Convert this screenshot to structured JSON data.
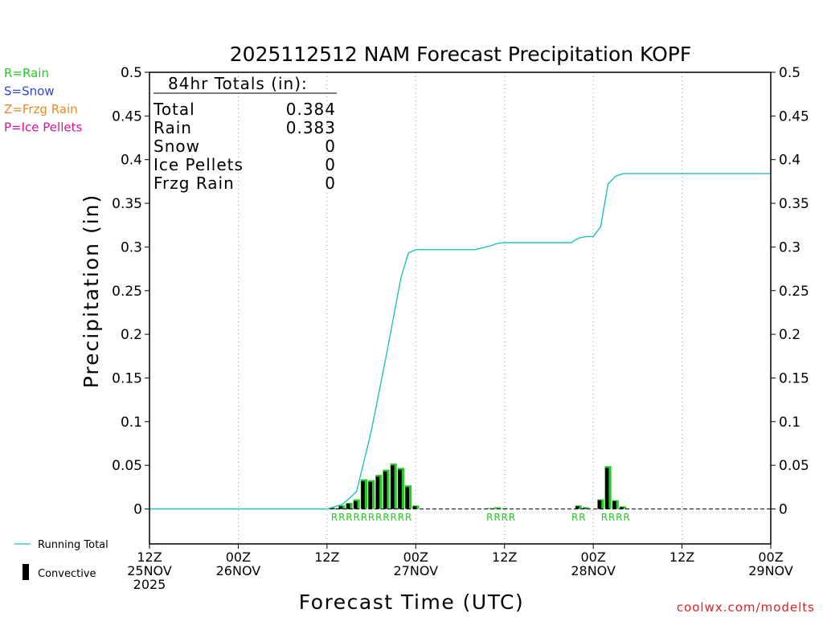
{
  "chart_data": {
    "type": "bar",
    "title": "2025112512 NAM Forecast Precipitation KOPF",
    "ylabel": "Precipitation (in)",
    "xlabel": "Forecast Time (UTC)",
    "xlim": [
      0,
      84
    ],
    "ylim": [
      -0.04,
      0.5
    ],
    "y_ticks": [
      0,
      0.05,
      0.1,
      0.15,
      0.2,
      0.25,
      0.3,
      0.35,
      0.4,
      0.45,
      0.5
    ],
    "y_tick_labels": [
      "0",
      "0.05",
      "0.1",
      "0.15",
      "0.2",
      "0.25",
      "0.3",
      "0.35",
      "0.4",
      "0.45",
      "0.5"
    ],
    "x_ticks": [
      {
        "hour": 0,
        "lines": [
          "12Z",
          "25NOV",
          "2025"
        ]
      },
      {
        "hour": 12,
        "lines": [
          "00Z",
          "26NOV"
        ]
      },
      {
        "hour": 24,
        "lines": [
          "12Z"
        ]
      },
      {
        "hour": 36,
        "lines": [
          "00Z",
          "27NOV"
        ]
      },
      {
        "hour": 48,
        "lines": [
          "12Z"
        ]
      },
      {
        "hour": 60,
        "lines": [
          "00Z",
          "28NOV"
        ]
      },
      {
        "hour": 72,
        "lines": [
          "12Z"
        ]
      },
      {
        "hour": 84,
        "lines": [
          "00Z",
          "29NOV"
        ]
      }
    ],
    "grid_hours": [
      12,
      24,
      36,
      48,
      60,
      72
    ],
    "bars": [
      {
        "hour": 25,
        "value": 0.001,
        "conv": 0.001
      },
      {
        "hour": 26,
        "value": 0.004,
        "conv": 0.003
      },
      {
        "hour": 27,
        "value": 0.007,
        "conv": 0.006
      },
      {
        "hour": 28,
        "value": 0.011,
        "conv": 0.009
      },
      {
        "hour": 29,
        "value": 0.034,
        "conv": 0.032
      },
      {
        "hour": 30,
        "value": 0.033,
        "conv": 0.031
      },
      {
        "hour": 31,
        "value": 0.039,
        "conv": 0.037
      },
      {
        "hour": 32,
        "value": 0.045,
        "conv": 0.043
      },
      {
        "hour": 33,
        "value": 0.052,
        "conv": 0.05
      },
      {
        "hour": 34,
        "value": 0.047,
        "conv": 0.045
      },
      {
        "hour": 35,
        "value": 0.027,
        "conv": 0.025
      },
      {
        "hour": 36,
        "value": 0.004,
        "conv": 0.003
      },
      {
        "hour": 46,
        "value": 0.001,
        "conv": 0.0
      },
      {
        "hour": 47,
        "value": 0.002,
        "conv": 0.0
      },
      {
        "hour": 48,
        "value": 0.001,
        "conv": 0.0
      },
      {
        "hour": 58,
        "value": 0.004,
        "conv": 0.003
      },
      {
        "hour": 59,
        "value": 0.002,
        "conv": 0.001
      },
      {
        "hour": 61,
        "value": 0.011,
        "conv": 0.01
      },
      {
        "hour": 62,
        "value": 0.049,
        "conv": 0.047
      },
      {
        "hour": 63,
        "value": 0.01,
        "conv": 0.009
      },
      {
        "hour": 64,
        "value": 0.003,
        "conv": 0.002
      }
    ],
    "running_total": {
      "name": "Running Total",
      "x": [
        0,
        24,
        26,
        27,
        28,
        30,
        32,
        34,
        35,
        36,
        37,
        44,
        46,
        47,
        48,
        56,
        57,
        58,
        59,
        60,
        61,
        62,
        63,
        64,
        84
      ],
      "y": [
        0,
        0,
        0.005,
        0.012,
        0.02,
        0.09,
        0.175,
        0.265,
        0.293,
        0.297,
        0.297,
        0.297,
        0.301,
        0.304,
        0.305,
        0.305,
        0.305,
        0.31,
        0.312,
        0.312,
        0.323,
        0.372,
        0.381,
        0.384,
        0.384
      ]
    },
    "precip_type_markers": [
      {
        "hour": 25,
        "label": "R"
      },
      {
        "hour": 26,
        "label": "R"
      },
      {
        "hour": 27,
        "label": "R"
      },
      {
        "hour": 28,
        "label": "R"
      },
      {
        "hour": 29,
        "label": "R"
      },
      {
        "hour": 30,
        "label": "R"
      },
      {
        "hour": 31,
        "label": "R"
      },
      {
        "hour": 32,
        "label": "R"
      },
      {
        "hour": 33,
        "label": "R"
      },
      {
        "hour": 34,
        "label": "R"
      },
      {
        "hour": 35,
        "label": "R"
      },
      {
        "hour": 46,
        "label": "R"
      },
      {
        "hour": 47,
        "label": "R"
      },
      {
        "hour": 48,
        "label": "R"
      },
      {
        "hour": 49,
        "label": "R"
      },
      {
        "hour": 57.5,
        "label": "R"
      },
      {
        "hour": 58.5,
        "label": "R"
      },
      {
        "hour": 61.5,
        "label": "R"
      },
      {
        "hour": 62.5,
        "label": "R"
      },
      {
        "hour": 63.5,
        "label": "R"
      },
      {
        "hour": 64.5,
        "label": "R"
      }
    ],
    "totals_box": {
      "heading": "84hr Totals (in):",
      "rows": [
        {
          "label": "Total",
          "value": "0.384"
        },
        {
          "label": "Rain",
          "value": "0.383"
        },
        {
          "label": "Snow",
          "value": "0"
        },
        {
          "label": "Ice Pellets",
          "value": "0"
        },
        {
          "label": "Frzg Rain",
          "value": "0"
        }
      ]
    },
    "type_legend": [
      {
        "text": "R=Rain",
        "color": "#22cc22"
      },
      {
        "text": "S=Snow",
        "color": "#3344dd"
      },
      {
        "text": "Z=Frzg Rain",
        "color": "#ee8822"
      },
      {
        "text": "P=Ice Pellets",
        "color": "#dd1199"
      }
    ],
    "series_legend": [
      {
        "text": "Running Total",
        "color": "#20c0c0"
      },
      {
        "text": "Convective",
        "color": "#000000"
      }
    ],
    "colors": {
      "rain": "#22cc22",
      "convective": "#000000",
      "running_total": "#20c0c0",
      "grid": "#999999"
    },
    "credit": "coolwx.com/modelts"
  }
}
